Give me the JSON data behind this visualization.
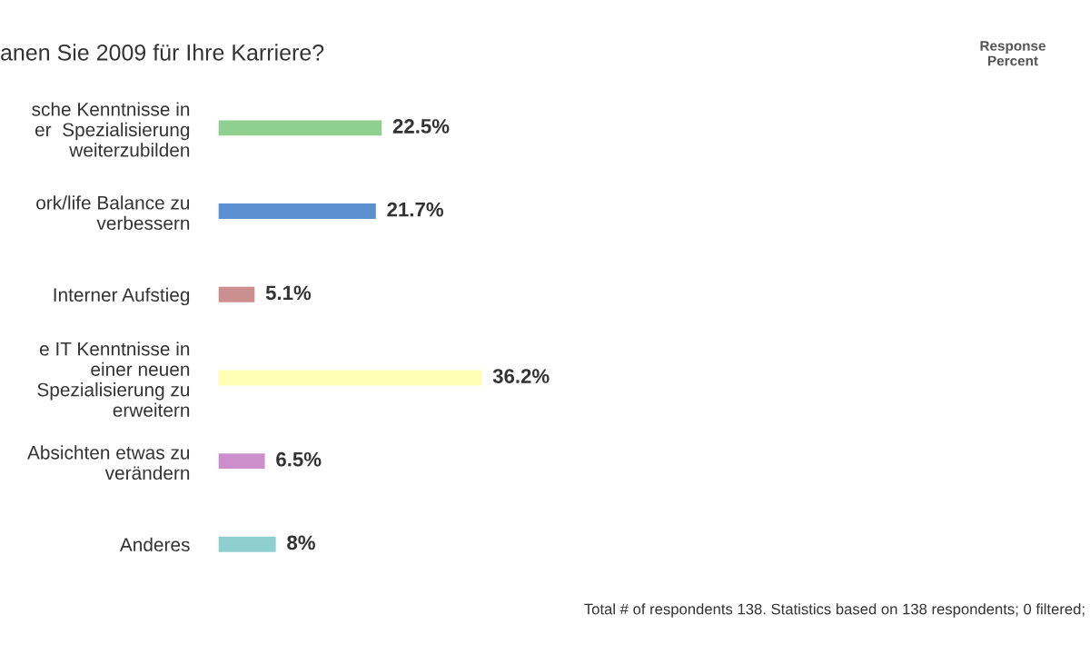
{
  "chart_data": {
    "type": "bar",
    "orientation": "horizontal",
    "title": "anen Sie 2009 für Ihre Karriere?",
    "categories": [
      "sche Kenntnisse in\ner  Spezialisierung\nweiterzubilden",
      "ork/life Balance zu\nverbessern",
      "Interner Aufstieg",
      "e IT Kenntnisse in\neiner neuen\nSpezialisierung zu\nerweitern",
      "Absichten etwas zu\nverändern",
      "Anderes"
    ],
    "values": [
      22.5,
      21.7,
      5.1,
      36.2,
      6.5,
      8
    ],
    "colors": [
      "#8fcf8f",
      "#5b8fd0",
      "#cc8f8f",
      "#ffffb3",
      "#cc8fcc",
      "#8fcfcf"
    ],
    "value_labels": [
      "22.5%",
      "21.7%",
      "5.1%",
      "36.2%",
      "6.5%",
      "8%"
    ],
    "annotations": [
      "Response\nPercent",
      "Total # of respondents 138. Statistics based on 138 respondents; 0 filtered;"
    ]
  }
}
